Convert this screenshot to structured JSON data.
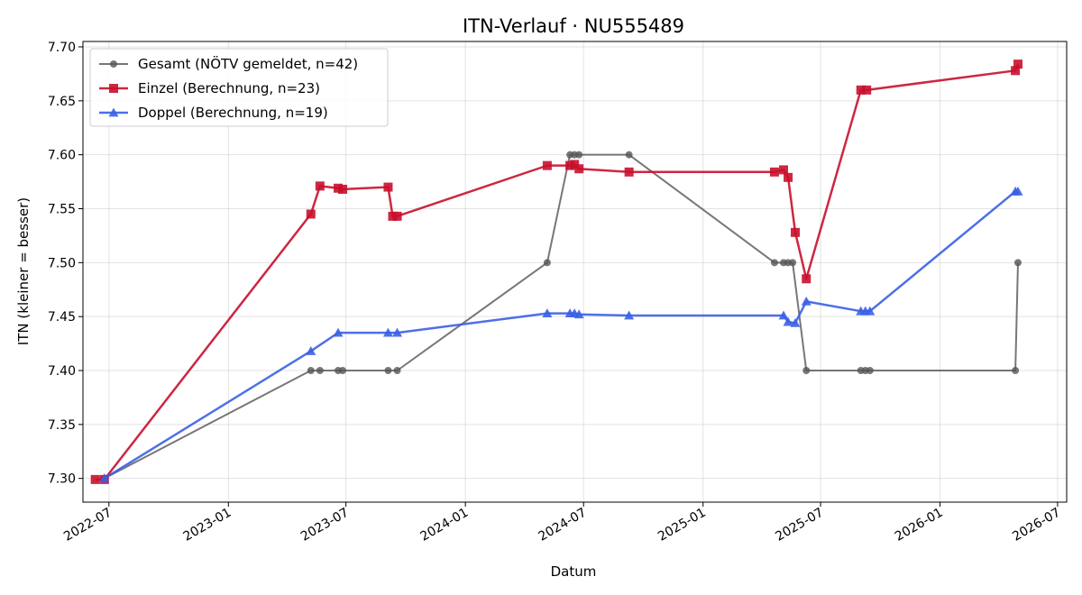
{
  "chart_data": {
    "type": "line",
    "title": "ITN-Verlauf · NU555489",
    "xlabel": "Datum",
    "ylabel": "ITN  (kleiner = besser)",
    "xlim": [
      "2022-05-22",
      "2026-07-15"
    ],
    "ylim": [
      7.278,
      7.705
    ],
    "x_ticks": [
      {
        "date": "2022-07-01",
        "label": "2022-07"
      },
      {
        "date": "2023-01-01",
        "label": "2023-01"
      },
      {
        "date": "2023-07-01",
        "label": "2023-07"
      },
      {
        "date": "2024-01-01",
        "label": "2024-01"
      },
      {
        "date": "2024-07-01",
        "label": "2024-07"
      },
      {
        "date": "2025-01-01",
        "label": "2025-01"
      },
      {
        "date": "2025-07-01",
        "label": "2025-07"
      },
      {
        "date": "2026-01-01",
        "label": "2026-01"
      },
      {
        "date": "2026-07-01",
        "label": "2026-07"
      }
    ],
    "y_ticks": [
      {
        "value": 7.3,
        "label": "7.30"
      },
      {
        "value": 7.35,
        "label": "7.35"
      },
      {
        "value": 7.4,
        "label": "7.40"
      },
      {
        "value": 7.45,
        "label": "7.45"
      },
      {
        "value": 7.5,
        "label": "7.50"
      },
      {
        "value": 7.55,
        "label": "7.55"
      },
      {
        "value": 7.6,
        "label": "7.60"
      },
      {
        "value": 7.65,
        "label": "7.65"
      },
      {
        "value": 7.7,
        "label": "7.70"
      }
    ],
    "grid": true,
    "legend_position": "top-left",
    "series": [
      {
        "name": "Gesamt (NÖTV gemeldet, n=42)",
        "color": "#555555",
        "marker": "circle",
        "points": [
          {
            "x": "2022-06-24",
            "y": 7.3
          },
          {
            "x": "2023-05-08",
            "y": 7.4
          },
          {
            "x": "2023-05-22",
            "y": 7.4
          },
          {
            "x": "2023-06-19",
            "y": 7.4
          },
          {
            "x": "2023-06-26",
            "y": 7.4
          },
          {
            "x": "2023-09-04",
            "y": 7.4
          },
          {
            "x": "2023-09-18",
            "y": 7.4
          },
          {
            "x": "2024-05-06",
            "y": 7.5
          },
          {
            "x": "2024-06-10",
            "y": 7.6
          },
          {
            "x": "2024-06-17",
            "y": 7.6
          },
          {
            "x": "2024-06-24",
            "y": 7.6
          },
          {
            "x": "2024-09-09",
            "y": 7.6
          },
          {
            "x": "2025-04-21",
            "y": 7.5
          },
          {
            "x": "2025-05-05",
            "y": 7.5
          },
          {
            "x": "2025-05-12",
            "y": 7.5
          },
          {
            "x": "2025-05-19",
            "y": 7.5
          },
          {
            "x": "2025-06-09",
            "y": 7.4
          },
          {
            "x": "2025-09-01",
            "y": 7.4
          },
          {
            "x": "2025-09-08",
            "y": 7.4
          },
          {
            "x": "2025-09-15",
            "y": 7.4
          },
          {
            "x": "2026-04-27",
            "y": 7.4
          },
          {
            "x": "2026-05-01",
            "y": 7.5
          }
        ]
      },
      {
        "name": "Einzel (Berechnung, n=23)",
        "color": "#c8102e",
        "marker": "square",
        "points": [
          {
            "x": "2022-06-10",
            "y": 7.299
          },
          {
            "x": "2022-06-24",
            "y": 7.299
          },
          {
            "x": "2023-05-08",
            "y": 7.545
          },
          {
            "x": "2023-05-22",
            "y": 7.571
          },
          {
            "x": "2023-06-19",
            "y": 7.569
          },
          {
            "x": "2023-06-26",
            "y": 7.568
          },
          {
            "x": "2023-09-04",
            "y": 7.57
          },
          {
            "x": "2023-09-11",
            "y": 7.543
          },
          {
            "x": "2023-09-18",
            "y": 7.543
          },
          {
            "x": "2024-05-06",
            "y": 7.59
          },
          {
            "x": "2024-06-10",
            "y": 7.59
          },
          {
            "x": "2024-06-17",
            "y": 7.591
          },
          {
            "x": "2024-06-24",
            "y": 7.587
          },
          {
            "x": "2024-09-09",
            "y": 7.584
          },
          {
            "x": "2025-04-21",
            "y": 7.584
          },
          {
            "x": "2025-05-05",
            "y": 7.586
          },
          {
            "x": "2025-05-12",
            "y": 7.579
          },
          {
            "x": "2025-05-23",
            "y": 7.528
          },
          {
            "x": "2025-06-09",
            "y": 7.485
          },
          {
            "x": "2025-09-01",
            "y": 7.66
          },
          {
            "x": "2025-09-10",
            "y": 7.66
          },
          {
            "x": "2026-04-27",
            "y": 7.678
          },
          {
            "x": "2026-05-01",
            "y": 7.684
          }
        ]
      },
      {
        "name": "Doppel (Berechnung, n=19)",
        "color": "#3a5fe5",
        "marker": "triangle",
        "points": [
          {
            "x": "2022-06-24",
            "y": 7.3
          },
          {
            "x": "2023-05-08",
            "y": 7.418
          },
          {
            "x": "2023-06-19",
            "y": 7.435
          },
          {
            "x": "2023-09-04",
            "y": 7.435
          },
          {
            "x": "2023-09-18",
            "y": 7.435
          },
          {
            "x": "2024-05-06",
            "y": 7.453
          },
          {
            "x": "2024-06-10",
            "y": 7.453
          },
          {
            "x": "2024-06-17",
            "y": 7.453
          },
          {
            "x": "2024-06-24",
            "y": 7.452
          },
          {
            "x": "2024-09-09",
            "y": 7.451
          },
          {
            "x": "2025-05-05",
            "y": 7.451
          },
          {
            "x": "2025-05-12",
            "y": 7.445
          },
          {
            "x": "2025-05-23",
            "y": 7.444
          },
          {
            "x": "2025-06-09",
            "y": 7.464
          },
          {
            "x": "2025-09-01",
            "y": 7.455
          },
          {
            "x": "2025-09-08",
            "y": 7.455
          },
          {
            "x": "2025-09-15",
            "y": 7.455
          },
          {
            "x": "2026-04-27",
            "y": 7.566
          },
          {
            "x": "2026-05-01",
            "y": 7.566
          }
        ]
      }
    ]
  }
}
